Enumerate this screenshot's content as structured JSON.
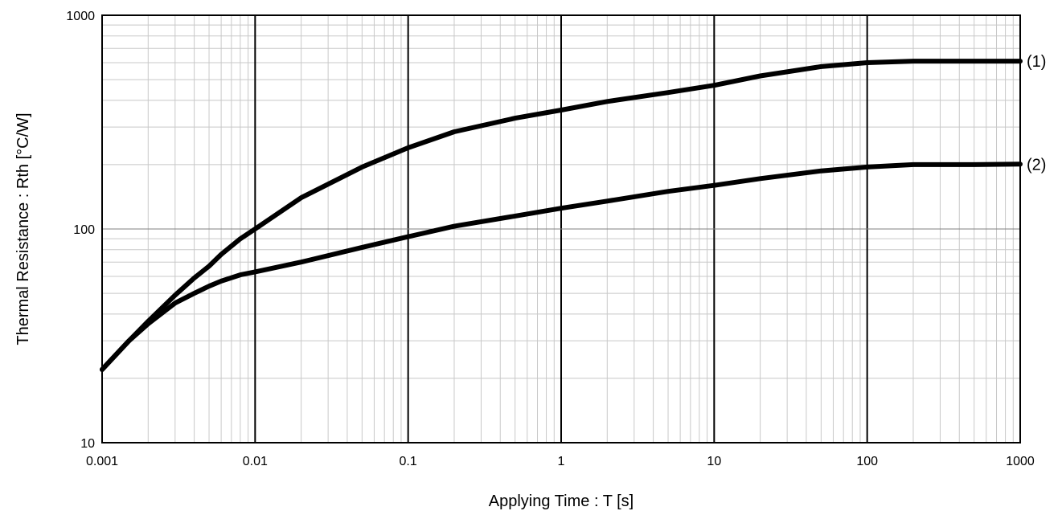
{
  "chart_data": {
    "type": "line",
    "xscale": "log",
    "yscale": "log",
    "xlim": [
      0.001,
      1000
    ],
    "ylim": [
      10,
      1000
    ],
    "xlabel": "Applying Time : T [s]",
    "ylabel": "Thermal Resistance : Rth [°C/W]",
    "title": "",
    "grid": true,
    "x_ticks": [
      {
        "value": 0.001,
        "label": "0.001"
      },
      {
        "value": 0.01,
        "label": "0.01"
      },
      {
        "value": 0.1,
        "label": "0.1"
      },
      {
        "value": 1,
        "label": "1"
      },
      {
        "value": 10,
        "label": "10"
      },
      {
        "value": 100,
        "label": "100"
      },
      {
        "value": 1000,
        "label": "1000"
      }
    ],
    "y_ticks": [
      {
        "value": 10,
        "label": "10"
      },
      {
        "value": 100,
        "label": "100"
      },
      {
        "value": 1000,
        "label": "1000"
      }
    ],
    "line_color": "#000000",
    "series": [
      {
        "label": "(1)",
        "x": [
          0.001,
          0.0015,
          0.002,
          0.003,
          0.004,
          0.005,
          0.006,
          0.008,
          0.01,
          0.02,
          0.05,
          0.1,
          0.2,
          0.5,
          1,
          2,
          5,
          10,
          20,
          50,
          100,
          200,
          500,
          1000
        ],
        "y": [
          22,
          30,
          37,
          49,
          59,
          67,
          76,
          90,
          100,
          140,
          195,
          240,
          285,
          330,
          360,
          395,
          435,
          470,
          520,
          575,
          600,
          610,
          610,
          610
        ]
      },
      {
        "label": "(2)",
        "x": [
          0.001,
          0.0015,
          0.002,
          0.003,
          0.004,
          0.005,
          0.006,
          0.008,
          0.01,
          0.02,
          0.05,
          0.1,
          0.2,
          0.5,
          1,
          2,
          5,
          10,
          20,
          50,
          100,
          200,
          500,
          1000
        ],
        "y": [
          22,
          30,
          36,
          45,
          50,
          54,
          57,
          61,
          63,
          70,
          82,
          92,
          103,
          115,
          125,
          135,
          150,
          160,
          172,
          187,
          195,
          200,
          200,
          201
        ]
      }
    ]
  }
}
